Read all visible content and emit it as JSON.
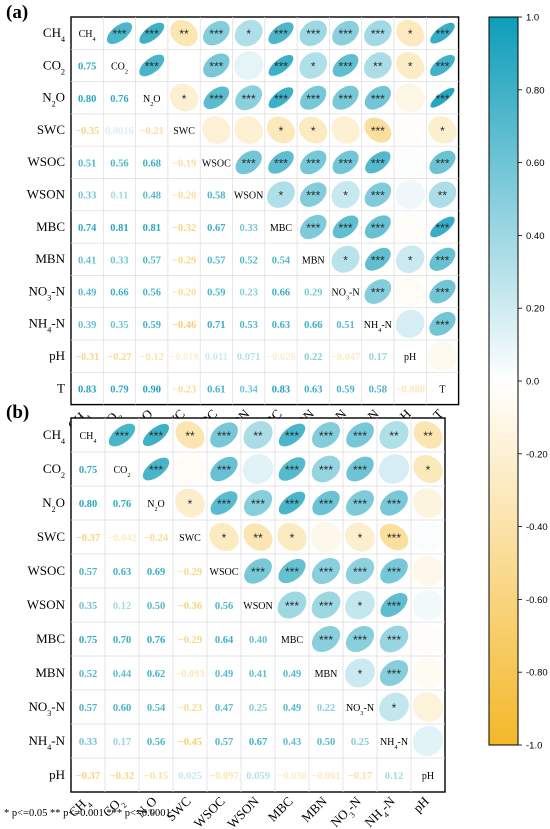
{
  "panels": {
    "a": {
      "label": "(a)"
    },
    "b": {
      "label": "(b)"
    }
  },
  "significance_note": "* p<=0.05  ** p<=0.001  *** p<=0.0001",
  "colorbar": {
    "ticks": [
      "1.0",
      "0.80",
      "0.60",
      "0.40",
      "0.20",
      "0.0",
      "-0.20",
      "-0.40",
      "-0.60",
      "-0.80",
      "-1.0"
    ],
    "colors": {
      "positive": "#0E9DB9",
      "neutral": "#FFFFFF",
      "negative": "#F4B829"
    },
    "range": [
      -1.0,
      1.0
    ]
  },
  "chart_data": [
    {
      "type": "heatmap",
      "panel": "(a)",
      "variables": [
        "CH4",
        "CO2",
        "N2O",
        "SWC",
        "WSOC",
        "WSON",
        "MBC",
        "MBN",
        "NO3-N",
        "NH4-N",
        "pH",
        "T"
      ],
      "lower_triangle_printed": [
        [],
        [
          "0.75"
        ],
        [
          "0.80",
          "0.76"
        ],
        [
          "−0.35",
          "0.0016",
          "−0.21"
        ],
        [
          "0.51",
          "0.56",
          "0.68",
          "−0.19"
        ],
        [
          "0.33",
          "0.11",
          "0.48",
          "−0.20",
          "0.58"
        ],
        [
          "0.74",
          "0.81",
          "0.81",
          "−0.32",
          "0.67",
          "0.33"
        ],
        [
          "0.41",
          "0.33",
          "0.57",
          "−0.29",
          "0.57",
          "0.52",
          "0.54"
        ],
        [
          "0.49",
          "0.66",
          "0.56",
          "−0.20",
          "0.59",
          "0.23",
          "0.66",
          "0.29"
        ],
        [
          "0.39",
          "0.35",
          "0.59",
          "−0.46",
          "0.71",
          "0.53",
          "0.63",
          "0.66",
          "0.51"
        ],
        [
          "−0.31",
          "−0.27",
          "−0.12",
          "−0.018",
          "0.011",
          "0.071",
          "−0.026",
          "0.22",
          "−0.047",
          "0.17"
        ],
        [
          "0.83",
          "0.79",
          "0.90",
          "−0.23",
          "0.61",
          "0.34",
          "0.83",
          "0.63",
          "0.59",
          "0.58",
          "−0.080"
        ]
      ],
      "upper_stars": [
        [
          "",
          "***",
          "***",
          "**",
          "***",
          "*",
          "***",
          "***",
          "***",
          "***",
          "*",
          "***"
        ],
        [
          "",
          "",
          "***",
          "",
          "***",
          "",
          "***",
          "*",
          "***",
          "**",
          "*",
          "***"
        ],
        [
          "",
          "",
          "",
          "*",
          "***",
          "***",
          "***",
          "***",
          "***",
          "***",
          "",
          "***"
        ],
        [
          "",
          "",
          "",
          "",
          "",
          "",
          "*",
          "*",
          "",
          "***",
          "",
          "*"
        ],
        [
          "",
          "",
          "",
          "",
          "",
          "***",
          "***",
          "***",
          "***",
          "***",
          "",
          "***"
        ],
        [
          "",
          "",
          "",
          "",
          "",
          "",
          "*",
          "***",
          "*",
          "***",
          "",
          "**"
        ],
        [
          "",
          "",
          "",
          "",
          "",
          "",
          "",
          "***",
          "***",
          "***",
          "",
          "***"
        ],
        [
          "",
          "",
          "",
          "",
          "",
          "",
          "",
          "",
          "*",
          "***",
          "*",
          "***"
        ],
        [
          "",
          "",
          "",
          "",
          "",
          "",
          "",
          "",
          "",
          "***",
          "",
          "***"
        ],
        [
          "",
          "",
          "",
          "",
          "",
          "",
          "",
          "",
          "",
          "",
          "",
          "***"
        ],
        [
          "",
          "",
          "",
          "",
          "",
          "",
          "",
          "",
          "",
          "",
          "",
          ""
        ],
        [
          "",
          "",
          "",
          "",
          "",
          "",
          "",
          "",
          "",
          "",
          "",
          ""
        ]
      ]
    },
    {
      "type": "heatmap",
      "panel": "(b)",
      "variables": [
        "CH4",
        "CO2",
        "N2O",
        "SWC",
        "WSOC",
        "WSON",
        "MBC",
        "MBN",
        "NO3-N",
        "NH4-N",
        "pH"
      ],
      "lower_triangle_printed": [
        [],
        [
          "0.75"
        ],
        [
          "0.80",
          "0.76"
        ],
        [
          "−0.37",
          "−0.042",
          "−0.24"
        ],
        [
          "0.57",
          "0.63",
          "0.69",
          "−0.29"
        ],
        [
          "0.35",
          "0.12",
          "0.50",
          "−0.36",
          "0.56"
        ],
        [
          "0.75",
          "0.70",
          "0.76",
          "−0.29",
          "0.64",
          "0.40"
        ],
        [
          "0.52",
          "0.44",
          "0.62",
          "−0.093",
          "0.49",
          "0.41",
          "0.49"
        ],
        [
          "0.57",
          "0.60",
          "0.54",
          "−0.23",
          "0.47",
          "0.25",
          "0.49",
          "0.22"
        ],
        [
          "0.33",
          "0.17",
          "0.56",
          "−0.45",
          "0.57",
          "0.67",
          "0.43",
          "0.50",
          "0.25"
        ],
        [
          "−0.37",
          "−0.32",
          "−0.15",
          "0.025",
          "−0.097",
          "0.059",
          "−0.030",
          "−0.061",
          "−0.17",
          "0.12"
        ]
      ],
      "upper_stars": [
        [
          "",
          "***",
          "***",
          "**",
          "***",
          "**",
          "***",
          "***",
          "***",
          "**",
          "**"
        ],
        [
          "",
          "",
          "***",
          "",
          "***",
          "",
          "***",
          "***",
          "***",
          "",
          "*"
        ],
        [
          "",
          "",
          "",
          "*",
          "***",
          "***",
          "***",
          "***",
          "***",
          "***",
          ""
        ],
        [
          "",
          "",
          "",
          "",
          "*",
          "**",
          "*",
          "",
          "*",
          "***",
          ""
        ],
        [
          "",
          "",
          "",
          "",
          "",
          "***",
          "***",
          "***",
          "***",
          "***",
          ""
        ],
        [
          "",
          "",
          "",
          "",
          "",
          "",
          "***",
          "***",
          "*",
          "***",
          ""
        ],
        [
          "",
          "",
          "",
          "",
          "",
          "",
          "",
          "***",
          "***",
          "***",
          ""
        ],
        [
          "",
          "",
          "",
          "",
          "",
          "",
          "",
          "",
          "*",
          "***",
          ""
        ],
        [
          "",
          "",
          "",
          "",
          "",
          "",
          "",
          "",
          "",
          "*",
          ""
        ],
        [
          "",
          "",
          "",
          "",
          "",
          "",
          "",
          "",
          "",
          "",
          ""
        ],
        [
          "",
          "",
          "",
          "",
          "",
          "",
          "",
          "",
          "",
          "",
          ""
        ]
      ]
    }
  ]
}
